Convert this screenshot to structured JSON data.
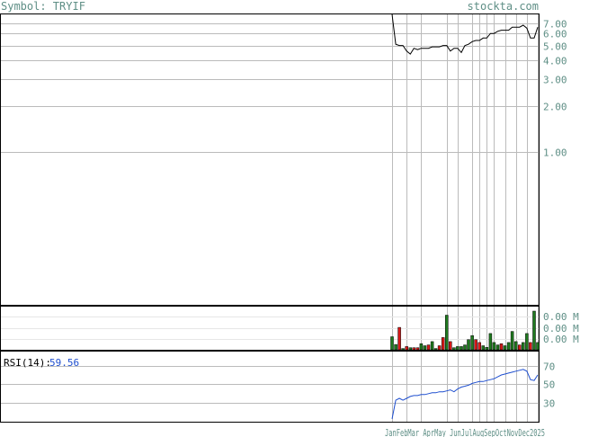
{
  "header": {
    "symbol_label": "Symbol: TRYIF",
    "site": "stockta.com"
  },
  "chart_data": {
    "type": "line",
    "title": "Symbol: TRYIF",
    "colors": {
      "price": "#000000",
      "rsi": "#1f4fcf",
      "up": "#1f7a1f",
      "down": "#d81818",
      "grid": "#bbbbbb",
      "text": "#5f8f86"
    },
    "price": {
      "scale": "log",
      "ylim": [
        0.1,
        8.0
      ],
      "y_ticks": [
        "7.00",
        "6.00",
        "5.00",
        "4.00",
        "3.00",
        "2.00",
        "1.00"
      ],
      "y_tick_values": [
        7,
        6,
        5,
        4,
        3,
        2,
        1
      ],
      "x": [
        0,
        1,
        2,
        3,
        4,
        5,
        6,
        7,
        8,
        9,
        10,
        11,
        12,
        13,
        14,
        15,
        16,
        17,
        18,
        19,
        20,
        21,
        22,
        23,
        24,
        25,
        26,
        27,
        28,
        29,
        30,
        31,
        32,
        33,
        34,
        35,
        36,
        37,
        38,
        39,
        40
      ],
      "values": [
        8.0,
        5.1,
        5.0,
        5.0,
        4.6,
        4.4,
        4.8,
        4.7,
        4.8,
        4.8,
        4.8,
        4.9,
        4.9,
        4.9,
        5.0,
        5.0,
        4.6,
        4.8,
        4.8,
        4.5,
        5.0,
        5.1,
        5.3,
        5.4,
        5.4,
        5.6,
        5.6,
        6.0,
        6.0,
        6.2,
        6.3,
        6.3,
        6.3,
        6.6,
        6.6,
        6.6,
        6.8,
        6.5,
        5.6,
        5.6,
        6.6
      ]
    },
    "volume": {
      "y_ticks": [
        "0.00 M",
        "0.00 M",
        "0.00 M"
      ],
      "x": [
        0,
        1,
        2,
        3,
        4,
        5,
        6,
        7,
        8,
        9,
        10,
        11,
        12,
        13,
        14,
        15,
        16,
        17,
        18,
        19,
        20,
        21,
        22,
        23,
        24,
        25,
        26,
        27,
        28,
        29,
        30,
        31,
        32,
        33,
        34,
        35,
        36,
        37,
        38,
        39,
        40
      ],
      "values": [
        0.32,
        0.13,
        0.55,
        0.03,
        0.08,
        0.05,
        0.05,
        0.05,
        0.15,
        0.1,
        0.12,
        0.2,
        0.03,
        0.1,
        0.3,
        0.85,
        0.2,
        0.05,
        0.08,
        0.08,
        0.12,
        0.25,
        0.35,
        0.25,
        0.18,
        0.1,
        0.06,
        0.4,
        0.18,
        0.12,
        0.15,
        0.1,
        0.18,
        0.45,
        0.2,
        0.12,
        0.18,
        0.4,
        0.18,
        0.95,
        0.18
      ],
      "direction": [
        "up",
        "up",
        "down",
        "up",
        "down",
        "up",
        "down",
        "down",
        "up",
        "up",
        "down",
        "up",
        "up",
        "down",
        "down",
        "up",
        "down",
        "up",
        "up",
        "up",
        "up",
        "up",
        "up",
        "down",
        "down",
        "up",
        "up",
        "up",
        "up",
        "up",
        "down",
        "up",
        "up",
        "up",
        "up",
        "down",
        "up",
        "up",
        "down",
        "up",
        "up"
      ]
    },
    "rsi": {
      "label": "RSI(14):",
      "value_text": "59.56",
      "y_ticks": [
        "70",
        "50",
        "30"
      ],
      "y_tick_values": [
        70,
        50,
        30
      ],
      "ylim": [
        10,
        85
      ],
      "x": [
        0,
        1,
        2,
        3,
        4,
        5,
        6,
        7,
        8,
        9,
        10,
        11,
        12,
        13,
        14,
        15,
        16,
        17,
        18,
        19,
        20,
        21,
        22,
        23,
        24,
        25,
        26,
        27,
        28,
        29,
        30,
        31,
        32,
        33,
        34,
        35,
        36,
        37,
        38,
        39,
        40
      ],
      "values": [
        13,
        33,
        35,
        33,
        35,
        37,
        38,
        38,
        39,
        39,
        40,
        41,
        41,
        42,
        42,
        43,
        44,
        42,
        45,
        47,
        48,
        49,
        51,
        52,
        53,
        53,
        54,
        55,
        56,
        58,
        60,
        61,
        62,
        63,
        64,
        65,
        66,
        64,
        55,
        54,
        60
      ]
    },
    "x_labels": [
      "Jan",
      "Feb",
      "Mar",
      "Apr",
      "May",
      "Jun",
      "Jul",
      "Aug",
      "Sep",
      "Oct",
      "Nov",
      "Dec",
      "2025"
    ],
    "x_label_positions": [
      0,
      4,
      8,
      15,
      18,
      22,
      24,
      26,
      28,
      31,
      34,
      37,
      40
    ],
    "x_label_text": "JanFebMar AprMay JunJulAugSepOctNovDec2025"
  }
}
